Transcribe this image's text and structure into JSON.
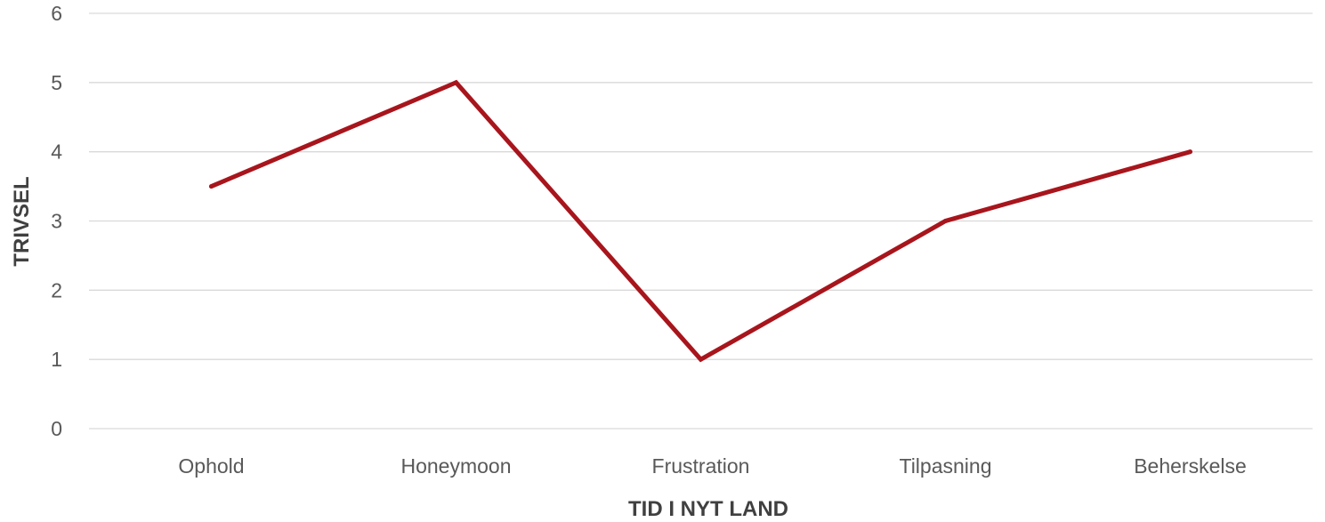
{
  "chart_data": {
    "type": "line",
    "categories": [
      "Ophold",
      "Honeymoon",
      "Frustration",
      "Tilpasning",
      "Beherskelse"
    ],
    "series": [
      {
        "values": [
          3.5,
          5,
          1,
          3,
          4
        ],
        "color": "#a8151c"
      }
    ],
    "xlabel": "TID I NYT LAND",
    "ylabel": "TRIVSEL",
    "ylim": [
      0,
      6
    ],
    "yticks": [
      "0",
      "1",
      "2",
      "3",
      "4",
      "5",
      "6"
    ],
    "grid": "horizontal",
    "legend": "none"
  }
}
